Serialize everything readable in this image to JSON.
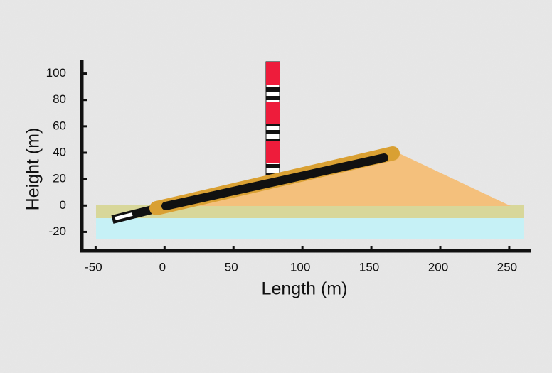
{
  "chart_data": {
    "type": "schematic",
    "xlabel": "Length (m)",
    "ylabel": "Height (m)",
    "xlim": [
      -60,
      265
    ],
    "ylim": [
      -30,
      110
    ],
    "xticks": [
      -50,
      0,
      50,
      100,
      150,
      200,
      250
    ],
    "yticks": [
      -20,
      0,
      20,
      40,
      60,
      80,
      100
    ]
  }
}
